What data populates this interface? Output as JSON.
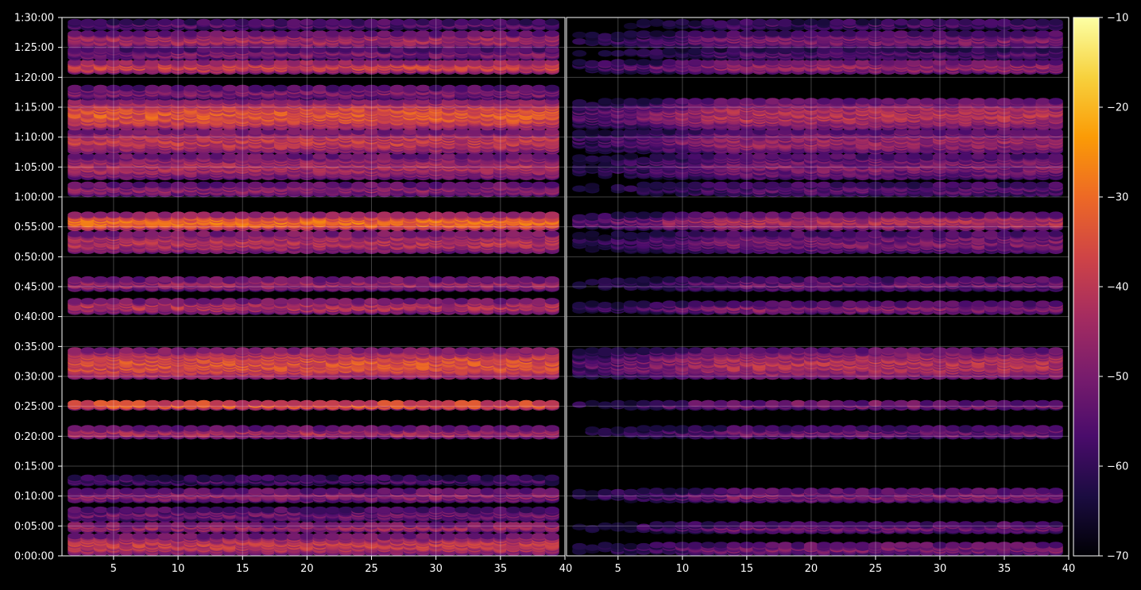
{
  "chart_data": {
    "type": "heatmap",
    "background": "#000000",
    "foreground": "#ffffff",
    "grid": true,
    "colormap": "inferno",
    "colormap_stops": [
      "#000004",
      "#1b0c41",
      "#4a0c6b",
      "#781c6d",
      "#a52c60",
      "#cf4446",
      "#ed6925",
      "#fb9b06",
      "#f7d13d",
      "#fcffa4"
    ],
    "y_axis": {
      "type": "time",
      "min_seconds": 0,
      "max_seconds": 5400,
      "ticks": [
        {
          "v": 0,
          "label": "0:00:00"
        },
        {
          "v": 300,
          "label": "0:05:00"
        },
        {
          "v": 600,
          "label": "0:10:00"
        },
        {
          "v": 900,
          "label": "0:15:00"
        },
        {
          "v": 1200,
          "label": "0:20:00"
        },
        {
          "v": 1500,
          "label": "0:25:00"
        },
        {
          "v": 1800,
          "label": "0:30:00"
        },
        {
          "v": 2100,
          "label": "0:35:00"
        },
        {
          "v": 2400,
          "label": "0:40:00"
        },
        {
          "v": 2700,
          "label": "0:45:00"
        },
        {
          "v": 3000,
          "label": "0:50:00"
        },
        {
          "v": 3300,
          "label": "0:55:00"
        },
        {
          "v": 3600,
          "label": "1:00:00"
        },
        {
          "v": 3900,
          "label": "1:05:00"
        },
        {
          "v": 4200,
          "label": "1:10:00"
        },
        {
          "v": 4500,
          "label": "1:15:00"
        },
        {
          "v": 4800,
          "label": "1:20:00"
        },
        {
          "v": 5100,
          "label": "1:25:00"
        },
        {
          "v": 5400,
          "label": "1:30:00"
        }
      ]
    },
    "panels": [
      {
        "side": "left",
        "x_range": [
          1,
          40
        ],
        "x_ticks": [
          {
            "v": 5,
            "label": "5"
          },
          {
            "v": 10,
            "label": "10"
          },
          {
            "v": 15,
            "label": "15"
          },
          {
            "v": 20,
            "label": "20"
          },
          {
            "v": 25,
            "label": "25"
          },
          {
            "v": 30,
            "label": "30"
          },
          {
            "v": 35,
            "label": "35"
          },
          {
            "v": 40,
            "label": "40"
          }
        ],
        "channels": [
          2,
          39
        ],
        "noise_floor": -70,
        "bands": [
          {
            "y0": 30,
            "y1": 200,
            "level": -40
          },
          {
            "y0": 260,
            "y1": 320,
            "level": -45
          },
          {
            "y0": 370,
            "y1": 470,
            "level": -52
          },
          {
            "y0": 560,
            "y1": 660,
            "level": -48
          },
          {
            "y0": 730,
            "y1": 790,
            "level": -58
          },
          {
            "y0": 1200,
            "y1": 1280,
            "level": -44
          },
          {
            "y0": 1490,
            "y1": 1540,
            "level": -33
          },
          {
            "y0": 1800,
            "y1": 2060,
            "level": -35
          },
          {
            "y0": 2450,
            "y1": 2560,
            "level": -42
          },
          {
            "y0": 2680,
            "y1": 2780,
            "level": -46
          },
          {
            "y0": 3060,
            "y1": 3240,
            "level": -42
          },
          {
            "y0": 3290,
            "y1": 3420,
            "level": -30
          },
          {
            "y0": 3630,
            "y1": 3730,
            "level": -48
          },
          {
            "y0": 3800,
            "y1": 4020,
            "level": -44
          },
          {
            "y0": 4060,
            "y1": 4260,
            "level": -40
          },
          {
            "y0": 4300,
            "y1": 4560,
            "level": -34
          },
          {
            "y0": 4600,
            "y1": 4700,
            "level": -50
          },
          {
            "y0": 4860,
            "y1": 4960,
            "level": -38
          },
          {
            "y0": 5000,
            "y1": 5080,
            "level": -50
          },
          {
            "y0": 5120,
            "y1": 5240,
            "level": -44
          },
          {
            "y0": 5300,
            "y1": 5360,
            "level": -55
          }
        ]
      },
      {
        "side": "right",
        "x_range": [
          1,
          40
        ],
        "x_ticks": [
          {
            "v": 5,
            "label": "5"
          },
          {
            "v": 10,
            "label": "10"
          },
          {
            "v": 15,
            "label": "15"
          },
          {
            "v": 20,
            "label": "20"
          },
          {
            "v": 25,
            "label": "25"
          },
          {
            "v": 30,
            "label": "30"
          },
          {
            "v": 35,
            "label": "35"
          },
          {
            "v": 40,
            "label": "40"
          }
        ],
        "channels": [
          2,
          39
        ],
        "noise_floor": -70,
        "bands": [
          {
            "y0": 30,
            "y1": 120,
            "level": -50
          },
          {
            "y0": 250,
            "y1": 320,
            "level": -52
          },
          {
            "y0": 560,
            "y1": 660,
            "level": -50
          },
          {
            "y0": 1200,
            "y1": 1280,
            "level": -52
          },
          {
            "y0": 1490,
            "y1": 1540,
            "level": -50
          },
          {
            "y0": 1800,
            "y1": 2060,
            "level": -42
          },
          {
            "y0": 2450,
            "y1": 2530,
            "level": -48
          },
          {
            "y0": 2680,
            "y1": 2780,
            "level": -52
          },
          {
            "y0": 3060,
            "y1": 3240,
            "level": -50
          },
          {
            "y0": 3290,
            "y1": 3420,
            "level": -42
          },
          {
            "y0": 3630,
            "y1": 3730,
            "level": -55
          },
          {
            "y0": 3800,
            "y1": 4020,
            "level": -50
          },
          {
            "y0": 4060,
            "y1": 4260,
            "level": -46
          },
          {
            "y0": 4300,
            "y1": 4560,
            "level": -42
          },
          {
            "y0": 4860,
            "y1": 4960,
            "level": -46
          },
          {
            "y0": 5000,
            "y1": 5080,
            "level": -56
          },
          {
            "y0": 5120,
            "y1": 5240,
            "level": -50
          },
          {
            "y0": 5300,
            "y1": 5360,
            "level": -58
          }
        ]
      }
    ],
    "colorbar": {
      "min": -70,
      "max": -10,
      "ticks": [
        {
          "v": -10,
          "label": "−10"
        },
        {
          "v": -20,
          "label": "−20"
        },
        {
          "v": -30,
          "label": "−30"
        },
        {
          "v": -40,
          "label": "−40"
        },
        {
          "v": -50,
          "label": "−50"
        },
        {
          "v": -60,
          "label": "−60"
        },
        {
          "v": -70,
          "label": "−70"
        }
      ]
    },
    "title": "",
    "xlabel": "",
    "ylabel": ""
  }
}
